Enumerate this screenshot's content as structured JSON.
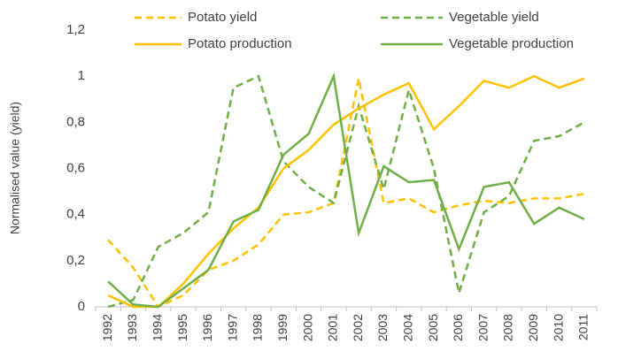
{
  "chart_data": {
    "type": "line",
    "y_label": "Normalised value (yield)",
    "categories": [
      "1992",
      "1993",
      "1994",
      "1995",
      "1996",
      "1997",
      "1998",
      "1999",
      "2000",
      "2001",
      "2002",
      "2003",
      "2004",
      "2005",
      "2006",
      "2007",
      "2008",
      "2009",
      "2010",
      "2011"
    ],
    "series": [
      {
        "name": "Potato yield",
        "color": "#FFC000",
        "dashed": true,
        "values": [
          0.29,
          0.17,
          0.0,
          0.05,
          0.16,
          0.2,
          0.27,
          0.4,
          0.41,
          0.45,
          0.99,
          0.45,
          0.47,
          0.41,
          0.44,
          0.46,
          0.45,
          0.47,
          0.47,
          0.49
        ]
      },
      {
        "name": "Vegetable yield",
        "color": "#70AD47",
        "dashed": true,
        "values": [
          0.0,
          0.03,
          0.26,
          0.32,
          0.41,
          0.95,
          1.0,
          0.63,
          0.52,
          0.45,
          0.87,
          0.51,
          0.94,
          0.6,
          0.06,
          0.41,
          0.48,
          0.72,
          0.74,
          0.8
        ]
      },
      {
        "name": "Potato production",
        "color": "#FFC000",
        "dashed": false,
        "values": [
          0.05,
          0.0,
          0.0,
          0.1,
          0.23,
          0.34,
          0.43,
          0.6,
          0.68,
          0.79,
          0.86,
          0.92,
          0.97,
          0.77,
          0.87,
          0.98,
          0.95,
          1.0,
          0.95,
          0.99
        ]
      },
      {
        "name": "Vegetable production",
        "color": "#70AD47",
        "dashed": false,
        "values": [
          0.11,
          0.01,
          0.0,
          0.08,
          0.16,
          0.37,
          0.42,
          0.66,
          0.75,
          1.0,
          0.32,
          0.61,
          0.54,
          0.55,
          0.25,
          0.52,
          0.54,
          0.36,
          0.43,
          0.38
        ]
      }
    ],
    "ylim": [
      0,
      1.2
    ],
    "yticks": [
      0,
      {
        "value": 0.2,
        "label": "0,2"
      },
      {
        "value": 0.4,
        "label": "0,4"
      },
      {
        "value": 0.6,
        "label": "0,6"
      },
      {
        "value": 0.8,
        "label": "0,8"
      },
      1,
      {
        "value": 1.2,
        "label": "1,2"
      }
    ],
    "grid": false
  }
}
